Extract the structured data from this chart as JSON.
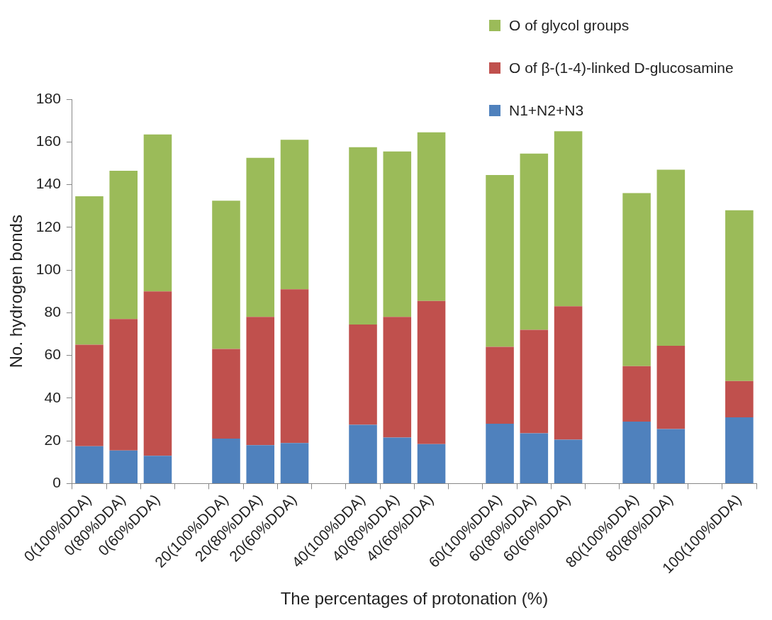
{
  "chart_data": {
    "type": "bar",
    "stacked": true,
    "xlabel": "The percentages of protonation (%)",
    "ylabel": "No. hydrogen bonds",
    "categories": [
      "0(100%DDA)",
      "0(80%DDA)",
      "0(60%DDA)",
      null,
      "20(100%DDA)",
      "20(80%DDA)",
      "20(60%DDA)",
      null,
      "40(100%DDA)",
      "40(80%DDA)",
      "40(60%DDA)",
      null,
      "60(100%DDA)",
      "60(80%DDA)",
      "60(60%DDA)",
      null,
      "80(100%DDA)",
      "80(80%DDA)",
      null,
      "100(100%DDA)"
    ],
    "series": [
      {
        "name": "N1+N2+N3",
        "color": "#4f81bd",
        "values": [
          17.5,
          15.5,
          13,
          null,
          21,
          18,
          19,
          null,
          27.5,
          21.5,
          18.5,
          null,
          28,
          23.5,
          20.5,
          null,
          29,
          25.5,
          null,
          31
        ]
      },
      {
        "name": "O of β-(1-4)-linked D-glucosamine",
        "color": "#c0504d",
        "values": [
          47.5,
          61.5,
          77,
          null,
          42,
          60,
          72,
          null,
          47,
          56.5,
          67,
          null,
          36,
          48.5,
          62.5,
          null,
          26,
          39,
          null,
          17
        ]
      },
      {
        "name": "O of glycol groups",
        "color": "#9bbb59",
        "values": [
          69.5,
          69.5,
          73.5,
          null,
          69.5,
          74.5,
          70,
          null,
          83,
          77.5,
          79,
          null,
          80.5,
          82.5,
          82,
          null,
          81,
          82.5,
          null,
          80
        ]
      }
    ],
    "ylim": [
      0,
      180
    ],
    "yticks": [
      0,
      20,
      40,
      60,
      80,
      100,
      120,
      140,
      160,
      180
    ],
    "grid": false,
    "legend": "top right"
  }
}
